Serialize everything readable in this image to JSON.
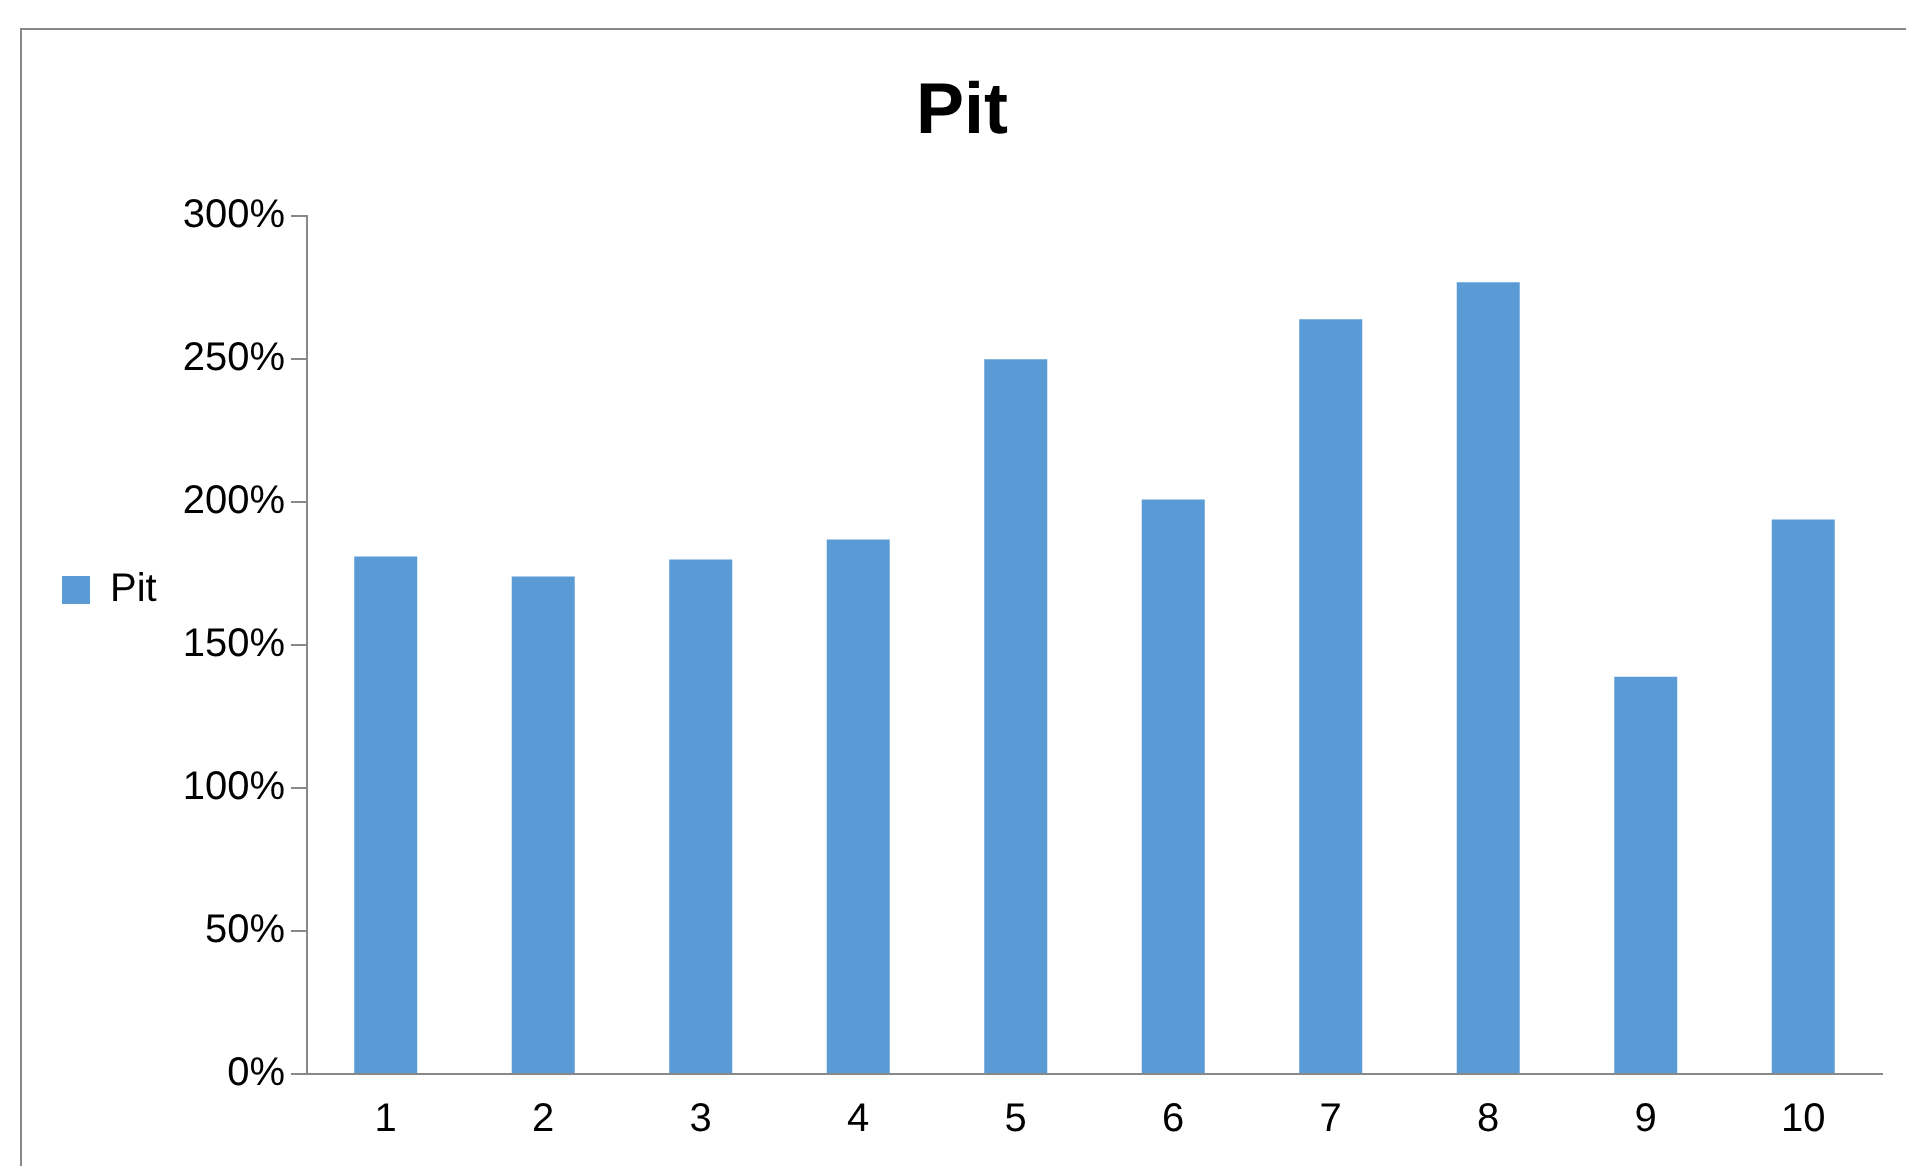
{
  "chart_data": {
    "type": "bar",
    "title": "Pit",
    "categories": [
      "1",
      "2",
      "3",
      "4",
      "5",
      "6",
      "7",
      "8",
      "9",
      "10"
    ],
    "series": [
      {
        "name": "Pit",
        "color": "#5b9bd5",
        "values": [
          181,
          174,
          180,
          187,
          250,
          201,
          264,
          277,
          139,
          194
        ]
      }
    ],
    "ylim": [
      0,
      300
    ],
    "yticks": [
      {
        "value": 0,
        "label": "0%"
      },
      {
        "value": 50,
        "label": "50%"
      },
      {
        "value": 100,
        "label": "100%"
      },
      {
        "value": 150,
        "label": "150%"
      },
      {
        "value": 200,
        "label": "200%"
      },
      {
        "value": 250,
        "label": "250%"
      },
      {
        "value": 300,
        "label": "300%"
      }
    ],
    "grid": false,
    "legend": "left"
  }
}
